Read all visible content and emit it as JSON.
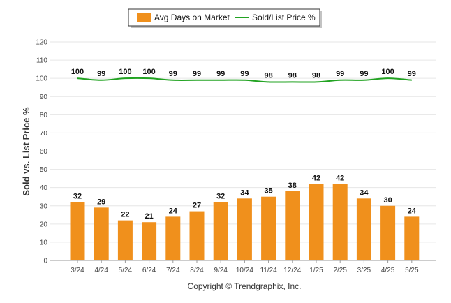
{
  "chart_data": {
    "type": "bar",
    "title": "",
    "xlabel": "",
    "ylabel": "Sold vs. List Price %",
    "ylim": [
      0,
      120
    ],
    "yticks": [
      0,
      10,
      20,
      30,
      40,
      50,
      60,
      70,
      80,
      90,
      100,
      110,
      120
    ],
    "grid": true,
    "legend_position": "top-center",
    "categories": [
      "3/24",
      "4/24",
      "5/24",
      "6/24",
      "7/24",
      "8/24",
      "9/24",
      "10/24",
      "11/24",
      "12/24",
      "1/25",
      "2/25",
      "3/25",
      "4/25",
      "5/25"
    ],
    "series": [
      {
        "name": "Avg Days on Market",
        "type": "bar",
        "color": "#f0901c",
        "values": [
          32,
          29,
          22,
          21,
          24,
          27,
          32,
          34,
          35,
          38,
          42,
          42,
          34,
          30,
          24
        ]
      },
      {
        "name": "Sold/List Price %",
        "type": "line",
        "color": "#22a322",
        "values": [
          100,
          99,
          100,
          100,
          99,
          99,
          99,
          99,
          98,
          98,
          98,
          99,
          99,
          100,
          99
        ]
      }
    ]
  },
  "footer": "Copyright © Trendgraphix, Inc."
}
